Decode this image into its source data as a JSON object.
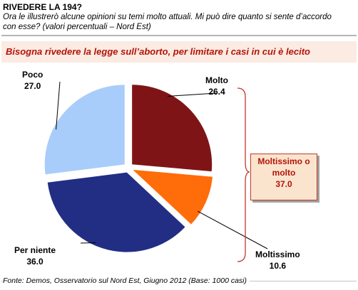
{
  "header": {
    "title": "RIVEDERE LA 194?",
    "subtitle": "Ora le illustrerò alcune opinioni su temi molto attuali. Mi può dire quanto si sente d’accordo con esse? (valori percentuali – Nord Est)"
  },
  "question": "Bisogna rivedere la legge sull’aborto, per limitare i casi in cui è lecito",
  "summary": {
    "label": "Moltissimo o molto",
    "value": "37.0"
  },
  "source": "Fonte: Demos, Osservatorio sul Nord Est, Giugno 2012 (Base: 1000 casi)",
  "colors": {
    "molto": "#7f1416",
    "moltissimo": "#ff6c0a",
    "per_niente": "#222e84",
    "poco": "#a9cdfa",
    "accent": "#b3140a"
  },
  "chart_data": {
    "type": "pie",
    "start_angle_deg": 0,
    "direction": "clockwise",
    "exploded": true,
    "slices": [
      {
        "label": "Molto",
        "value": 26.4,
        "display": "26.4",
        "color": "#7f1416"
      },
      {
        "label": "Moltissimo",
        "value": 10.6,
        "display": "10.6",
        "color": "#ff6c0a"
      },
      {
        "label": "Per niente",
        "value": 36.0,
        "display": "36.0",
        "color": "#222e84"
      },
      {
        "label": "Poco",
        "value": 27.0,
        "display": "27.0",
        "color": "#a9cdfa"
      }
    ]
  }
}
